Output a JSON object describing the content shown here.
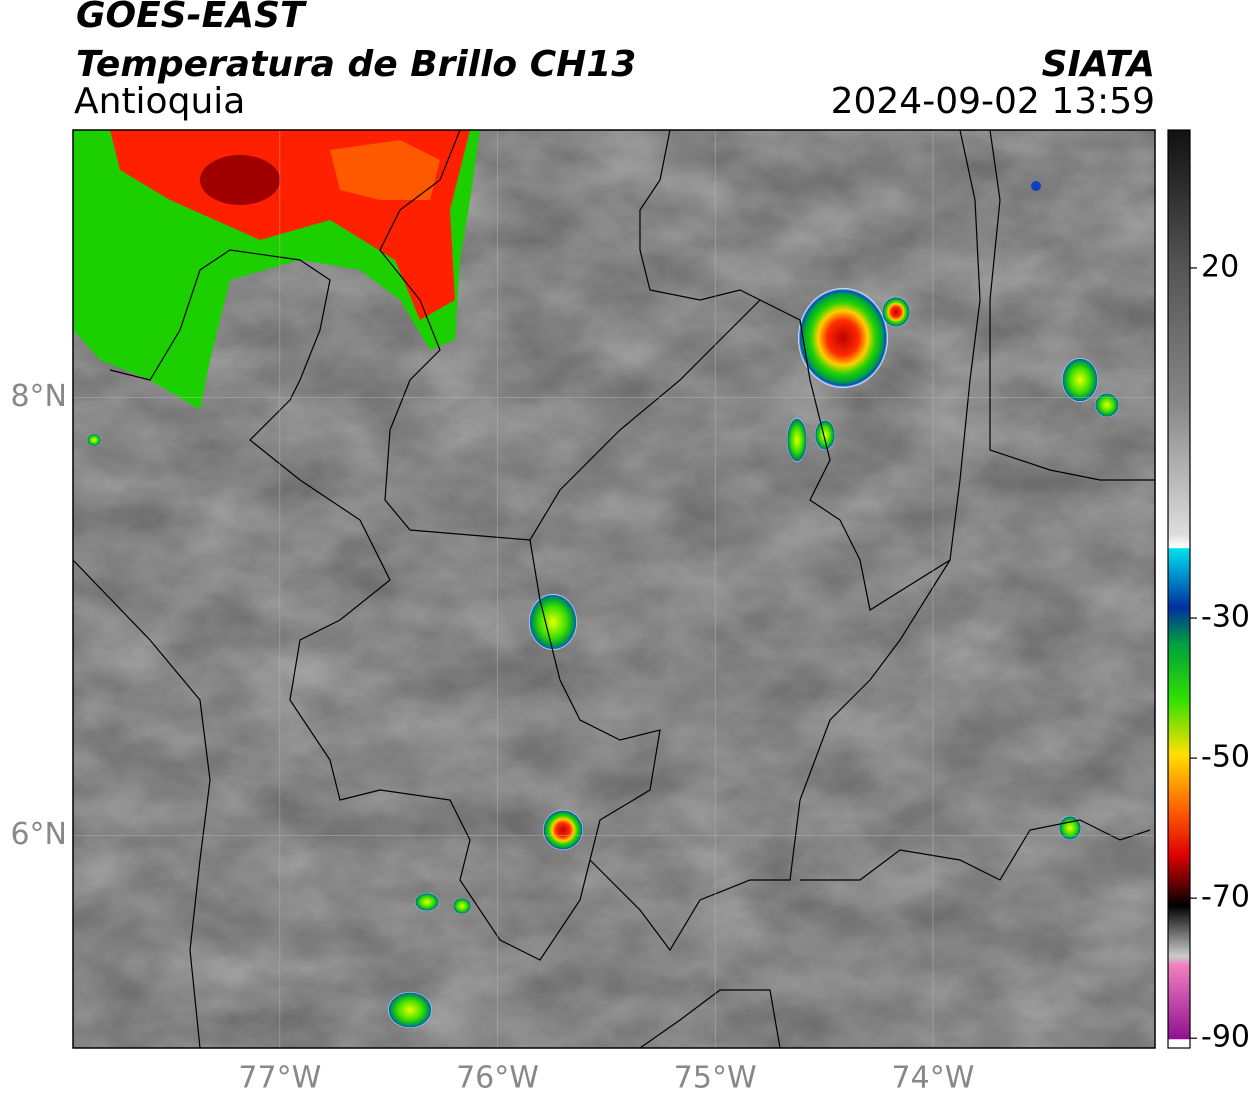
{
  "header": {
    "title": "GOES-EAST",
    "subtitle": "Temperatura de Brillo CH13",
    "region": "Antioquia",
    "source": "SIATA",
    "datetime": "2024-09-02 13:59"
  },
  "map": {
    "xlim": [
      -77.95,
      -72.98
    ],
    "ylim": [
      5.03,
      9.22
    ],
    "xticks": [
      {
        "value": -77,
        "label": "77°W"
      },
      {
        "value": -76,
        "label": "76°W"
      },
      {
        "value": -75,
        "label": "75°W"
      },
      {
        "value": -74,
        "label": "74°W"
      }
    ],
    "yticks": [
      {
        "value": 6,
        "label": "6°N"
      },
      {
        "value": 8,
        "label": "8°N"
      }
    ]
  },
  "colorbar": {
    "lim": [
      -91.4,
      39.7
    ],
    "ticks": [
      20,
      -30,
      -50,
      -70,
      -90
    ]
  }
}
